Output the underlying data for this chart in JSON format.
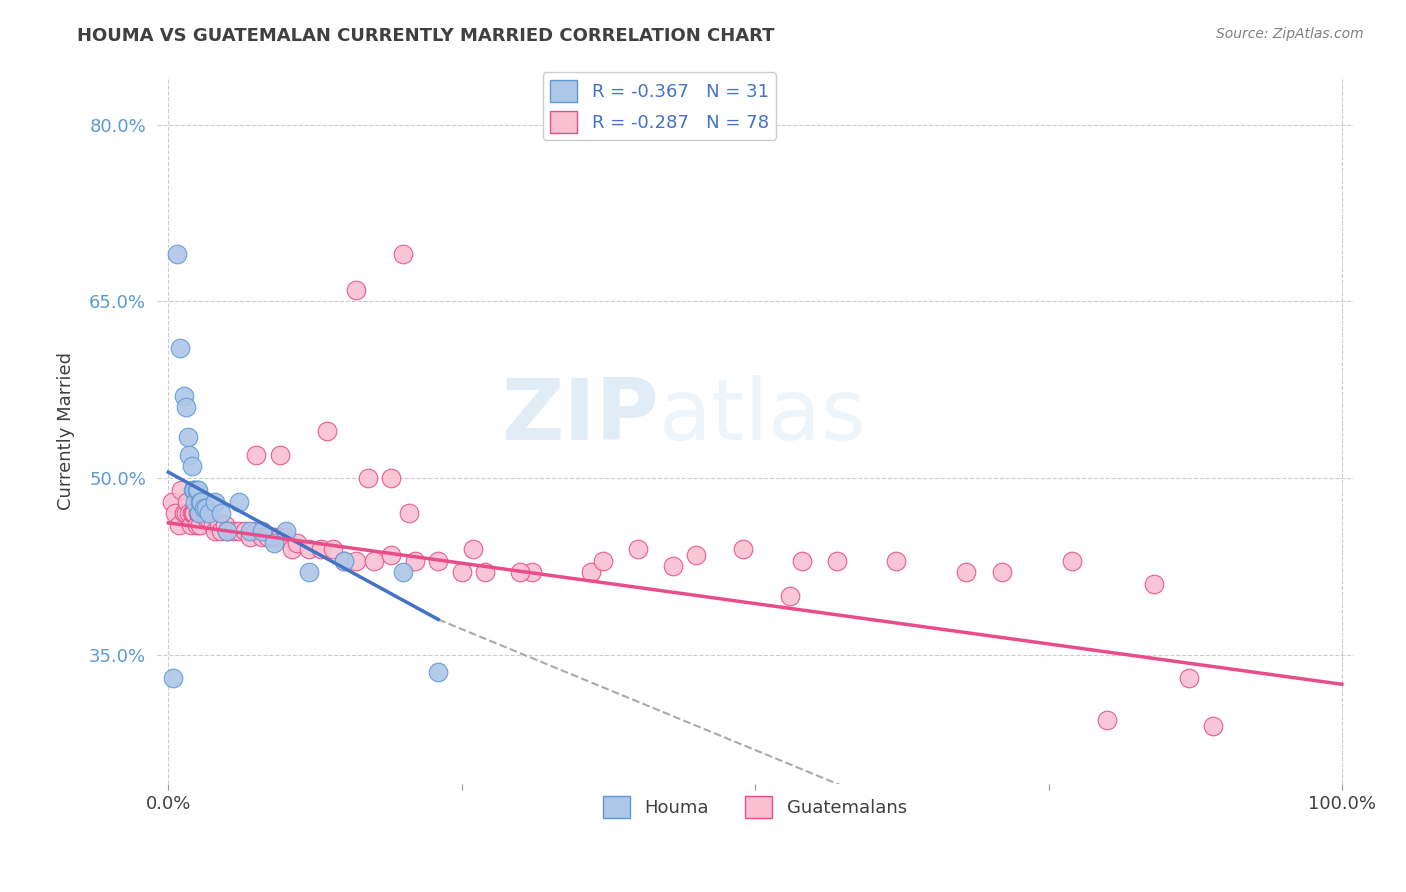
{
  "title": "HOUMA VS GUATEMALAN CURRENTLY MARRIED CORRELATION CHART",
  "source": "Source: ZipAtlas.com",
  "ylabel": "Currently Married",
  "watermark": "ZIPatlas",
  "legend_entries": [
    {
      "label": "R = -0.367   N = 31",
      "color": "#aec6e8"
    },
    {
      "label": "R = -0.287   N = 78",
      "color": "#f4a7b9"
    }
  ],
  "legend_bottom": [
    "Houma",
    "Guatemalans"
  ],
  "xlim": [
    -0.01,
    1.01
  ],
  "ylim": [
    0.24,
    0.84
  ],
  "xticklabels": [
    "0.0%",
    "100.0%"
  ],
  "xtick_values": [
    0.0,
    1.0
  ],
  "yticklabels": [
    "35.0%",
    "50.0%",
    "65.0%",
    "80.0%"
  ],
  "ytick_values": [
    0.35,
    0.5,
    0.65,
    0.8
  ],
  "houma_scatter_x": [
    0.004,
    0.007,
    0.01,
    0.013,
    0.015,
    0.017,
    0.018,
    0.02,
    0.021,
    0.022,
    0.023,
    0.024,
    0.025,
    0.026,
    0.027,
    0.028,
    0.03,
    0.032,
    0.035,
    0.04,
    0.045,
    0.05,
    0.06,
    0.07,
    0.08,
    0.09,
    0.1,
    0.12,
    0.15,
    0.2,
    0.23
  ],
  "houma_scatter_y": [
    0.33,
    0.69,
    0.61,
    0.57,
    0.56,
    0.535,
    0.52,
    0.51,
    0.49,
    0.49,
    0.48,
    0.49,
    0.49,
    0.47,
    0.48,
    0.48,
    0.475,
    0.475,
    0.47,
    0.48,
    0.47,
    0.455,
    0.48,
    0.455,
    0.455,
    0.445,
    0.455,
    0.42,
    0.43,
    0.42,
    0.335
  ],
  "guatemalan_scatter_x": [
    0.003,
    0.006,
    0.009,
    0.011,
    0.013,
    0.015,
    0.016,
    0.018,
    0.019,
    0.02,
    0.021,
    0.022,
    0.024,
    0.025,
    0.026,
    0.027,
    0.028,
    0.03,
    0.032,
    0.033,
    0.035,
    0.038,
    0.04,
    0.043,
    0.045,
    0.048,
    0.05,
    0.055,
    0.06,
    0.065,
    0.07,
    0.075,
    0.08,
    0.085,
    0.09,
    0.095,
    0.1,
    0.105,
    0.11,
    0.12,
    0.13,
    0.14,
    0.15,
    0.16,
    0.175,
    0.19,
    0.21,
    0.23,
    0.25,
    0.27,
    0.2,
    0.16,
    0.135,
    0.095,
    0.075,
    0.17,
    0.19,
    0.205,
    0.26,
    0.31,
    0.36,
    0.4,
    0.45,
    0.49,
    0.54,
    0.57,
    0.62,
    0.68,
    0.71,
    0.77,
    0.84,
    0.89,
    0.3,
    0.37,
    0.43,
    0.53,
    0.8,
    0.87
  ],
  "guatemalan_scatter_y": [
    0.48,
    0.47,
    0.46,
    0.49,
    0.47,
    0.47,
    0.48,
    0.47,
    0.46,
    0.47,
    0.47,
    0.47,
    0.46,
    0.47,
    0.47,
    0.46,
    0.47,
    0.47,
    0.47,
    0.465,
    0.465,
    0.46,
    0.455,
    0.462,
    0.455,
    0.46,
    0.455,
    0.455,
    0.455,
    0.455,
    0.45,
    0.455,
    0.45,
    0.45,
    0.45,
    0.45,
    0.45,
    0.44,
    0.445,
    0.44,
    0.44,
    0.44,
    0.43,
    0.43,
    0.43,
    0.435,
    0.43,
    0.43,
    0.42,
    0.42,
    0.69,
    0.66,
    0.54,
    0.52,
    0.52,
    0.5,
    0.5,
    0.47,
    0.44,
    0.42,
    0.42,
    0.44,
    0.435,
    0.44,
    0.43,
    0.43,
    0.43,
    0.42,
    0.42,
    0.43,
    0.41,
    0.29,
    0.42,
    0.43,
    0.425,
    0.4,
    0.295,
    0.33
  ],
  "houma_line_x": [
    0.0,
    0.23
  ],
  "houma_line_y": [
    0.505,
    0.38
  ],
  "guatemalan_line_x": [
    0.0,
    1.0
  ],
  "guatemalan_line_y": [
    0.462,
    0.325
  ],
  "dashed_line_x": [
    0.23,
    1.01
  ],
  "dashed_line_y": [
    0.38,
    0.06
  ],
  "houma_dot_color": "#5b9bd5",
  "houma_dot_fill": "#aec6e8",
  "guatemalan_dot_color": "#e84d8a",
  "guatemalan_dot_fill": "#f8c0d0",
  "houma_line_color": "#4472c4",
  "guatemalan_line_color": "#e84d8a",
  "dashed_line_color": "#aaaaaa",
  "grid_color": "#cccccc",
  "background_color": "#ffffff",
  "title_color": "#404040",
  "source_color": "#808080",
  "ytick_color": "#5b9bd5",
  "xtick_color": "#404040"
}
